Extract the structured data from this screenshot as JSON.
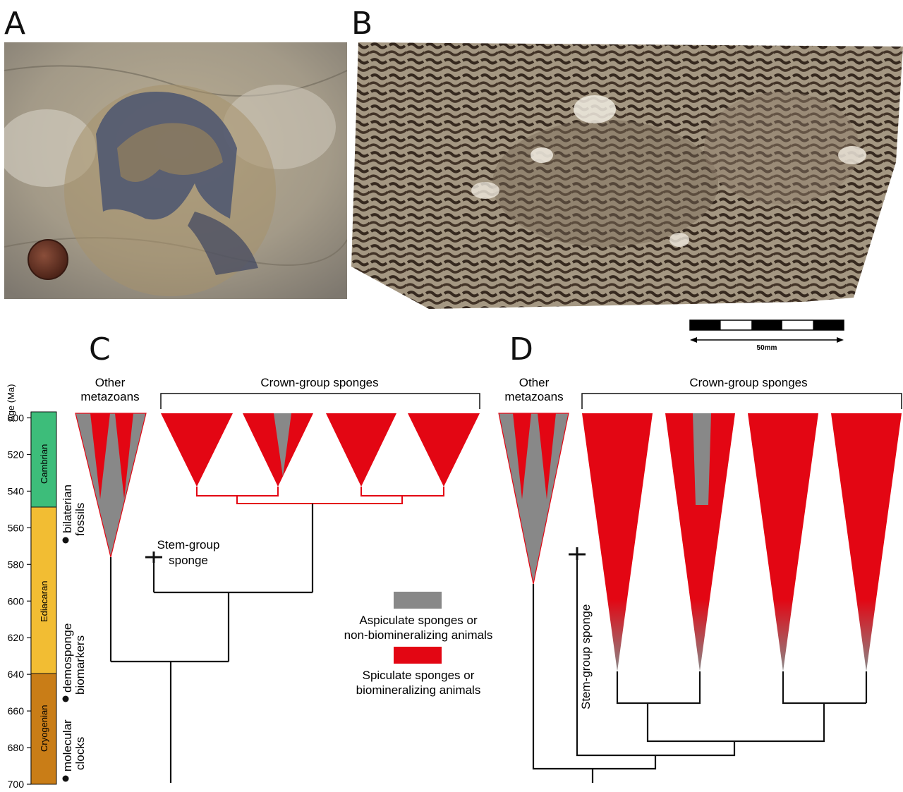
{
  "panels": {
    "a": "A",
    "b": "B",
    "c": "C",
    "d": "D"
  },
  "photo_b": {
    "scale_label": "50mm"
  },
  "panel_c": {
    "group_other": [
      "Other",
      "metazoans"
    ],
    "group_crown": "Crown-group sponges",
    "stem_label": [
      "Stem-group",
      "sponge"
    ]
  },
  "panel_d": {
    "group_other": [
      "Other",
      "metazoans"
    ],
    "group_crown": "Crown-group sponges",
    "stem_label": "Stem-group sponge"
  },
  "timescale": {
    "axis_label": "Age (Ma)",
    "ticks": [
      500,
      520,
      540,
      560,
      580,
      600,
      620,
      640,
      660,
      680,
      700
    ],
    "periods": [
      {
        "name": "Cambrian",
        "color": "#3dbd7a"
      },
      {
        "name": "Ediacaran",
        "color": "#f2bd33"
      },
      {
        "name": "Cryogenian",
        "color": "#c97d17"
      }
    ],
    "events": [
      {
        "label": "bilaterian",
        "label2": "fossils"
      },
      {
        "label": "demosponge",
        "label2": "biomarkers"
      },
      {
        "label": "molecular",
        "label2": "clocks"
      }
    ]
  },
  "legend": {
    "items": [
      {
        "label_lines": [
          "Aspiculate sponges or",
          "non-biomineralizing animals"
        ],
        "color": "#888888"
      },
      {
        "label_lines": [
          "Spiculate sponges or",
          "biomineralizing animals"
        ],
        "color": "#e30613"
      }
    ]
  },
  "colors": {
    "red": "#e30613",
    "grey": "#888888",
    "line": "#111111"
  }
}
